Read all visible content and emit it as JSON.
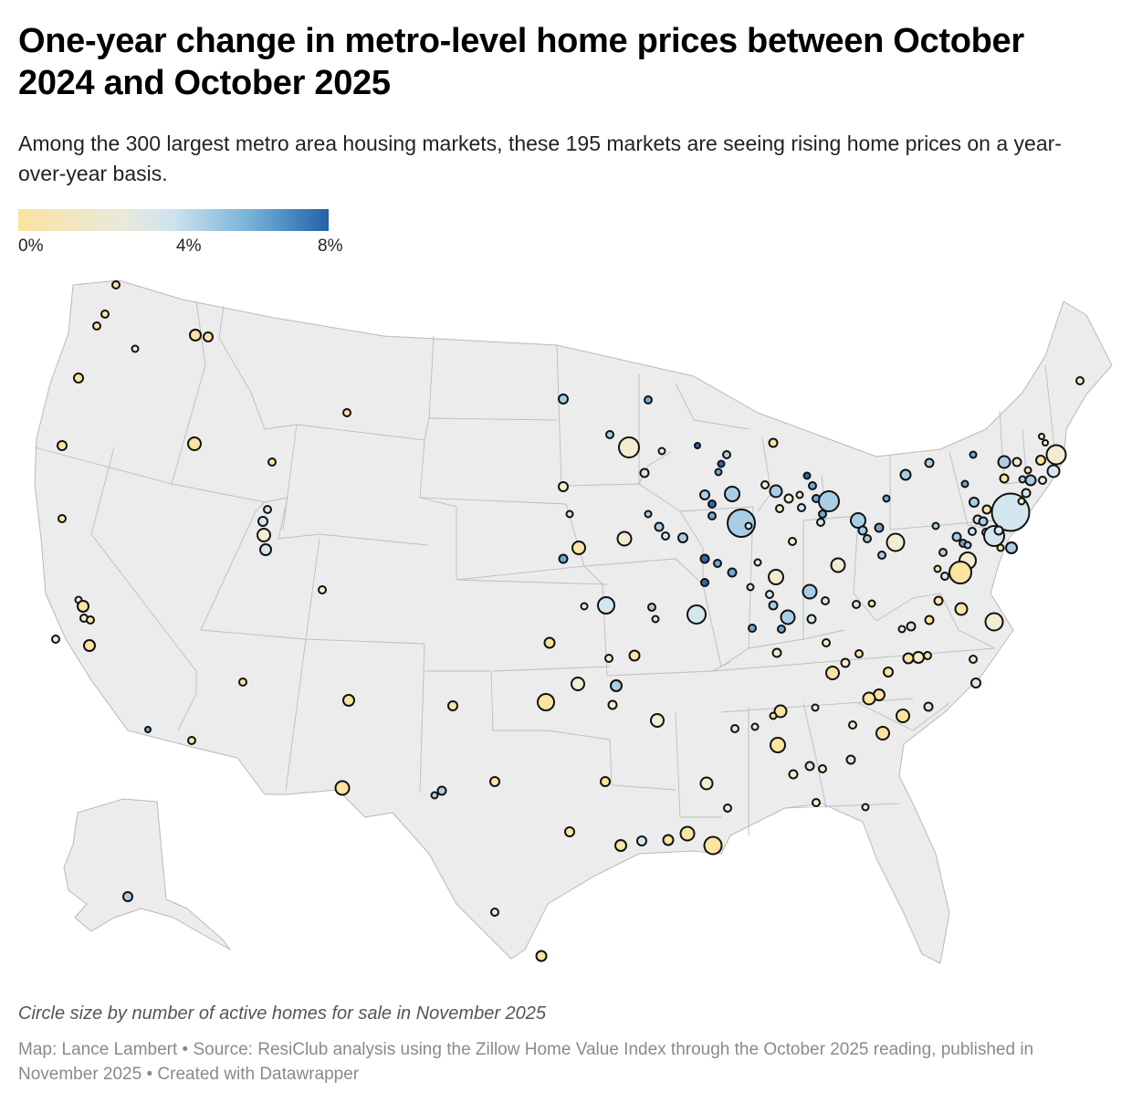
{
  "title": "One-year change in metro-level home prices between October 2024 and October 2025",
  "subtitle": "Among the 300 largest metro area housing markets, these 195 markets are seeing rising home prices on a year-over-year basis.",
  "legend": {
    "min_label": "0%",
    "mid_label": "4%",
    "max_label": "8%",
    "colors": [
      "#fbe3a0",
      "#e9e9dc",
      "#cfe2ee",
      "#74b1d8",
      "#2361a9"
    ]
  },
  "size_note": "Circle size by number of active homes for sale in November 2025",
  "credits": "Map: Lance Lambert • Source: ResiClub analysis using the Zillow Home Value Index through the October 2025 reading, published in November 2025 • Created with Datawrapper",
  "colors": {
    "land": "#ececec",
    "border": "#b9b9b9",
    "marker_stroke": "#111111"
  }
}
